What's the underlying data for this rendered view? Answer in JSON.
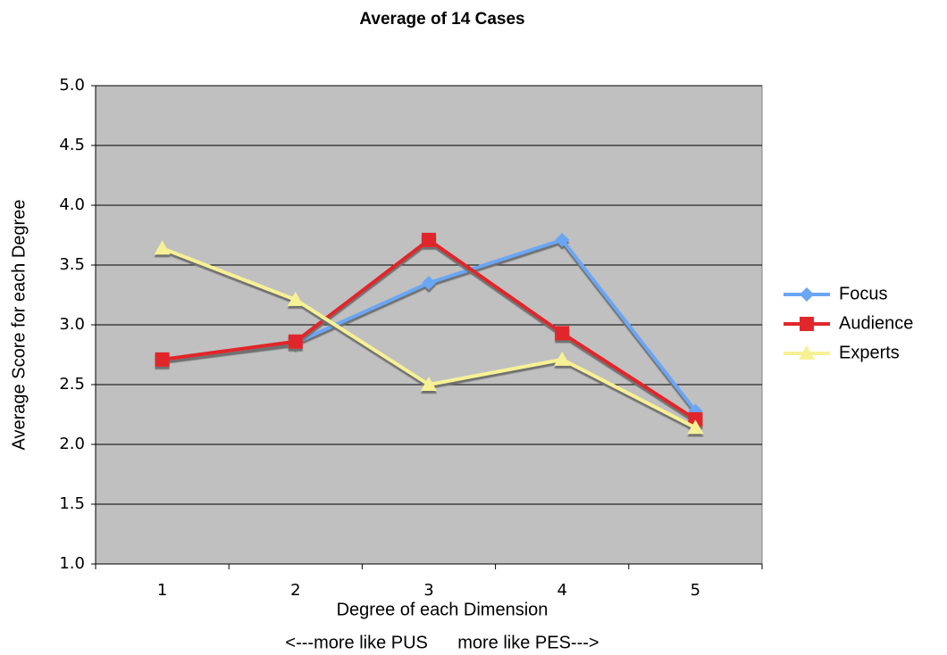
{
  "chart_data": {
    "type": "line",
    "title": "Average of 14 Cases",
    "x_label": "Degree of each Dimension",
    "x_note": "<---more like PUS      more like PES--->",
    "y_label": "Average Score for each Degree",
    "categories": [
      "1",
      "2",
      "3",
      "4",
      "5"
    ],
    "series": [
      {
        "name": "Focus",
        "color": "#6aa6f4",
        "marker": "diamond",
        "values": [
          2.71,
          2.85,
          3.35,
          3.71,
          2.28
        ]
      },
      {
        "name": "Audience",
        "color": "#e0282c",
        "marker": "square",
        "values": [
          2.71,
          2.86,
          3.71,
          2.93,
          2.21
        ]
      },
      {
        "name": "Experts",
        "color": "#f7f196",
        "marker": "triangle",
        "values": [
          3.64,
          3.21,
          2.5,
          2.71,
          2.14
        ]
      }
    ],
    "ylim": [
      1,
      5
    ],
    "yticks": [
      {
        "value": 1,
        "label": "1.0"
      },
      {
        "value": 1.5,
        "label": "1.5"
      },
      {
        "value": 2,
        "label": "2.0"
      },
      {
        "value": 2.5,
        "label": "2.5"
      },
      {
        "value": 3,
        "label": "3.0"
      },
      {
        "value": 3.5,
        "label": "3.5"
      },
      {
        "value": 4,
        "label": "4.0"
      },
      {
        "value": 4.5,
        "label": "4.5"
      },
      {
        "value": 5,
        "label": "5.0"
      }
    ],
    "grid": true,
    "plot_background": "#c0c0c0",
    "legend": "right"
  }
}
